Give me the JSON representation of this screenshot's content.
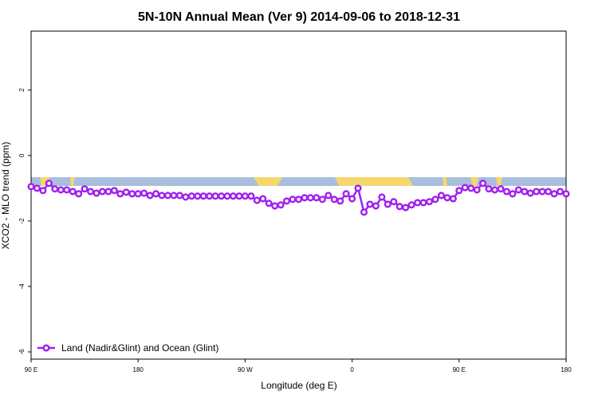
{
  "chart_data": {
    "type": "line",
    "title": "5N-10N Annual Mean (Ver 9)   2014-09-06 to 2018-12-31",
    "x_label": "Longitude (deg E)",
    "y_label": "XCO2 - MLO trend (ppm)",
    "xlim": [
      90,
      540
    ],
    "ylim": [
      -6.22,
      3.8
    ],
    "xticks": [
      {
        "value": 90,
        "label": "90 E"
      },
      180,
      {
        "value": 270,
        "label": "90 W"
      },
      {
        "value": 360,
        "label": "0"
      },
      {
        "value": 450,
        "label": "90 E"
      },
      {
        "value": 540,
        "label": "180"
      }
    ],
    "yticks": [
      -6,
      -4,
      -2,
      0,
      2
    ],
    "legend": "bottom-left",
    "x": [
      90,
      95,
      100,
      105,
      110,
      115,
      120,
      125,
      130,
      135,
      140,
      145,
      150,
      155,
      160,
      165,
      170,
      175,
      180,
      185,
      190,
      195,
      200,
      205,
      210,
      215,
      220,
      225,
      230,
      235,
      240,
      245,
      250,
      255,
      260,
      265,
      270,
      275,
      280,
      285,
      290,
      295,
      300,
      305,
      310,
      315,
      320,
      325,
      330,
      335,
      340,
      345,
      350,
      355,
      360,
      365,
      370,
      375,
      380,
      385,
      390,
      395,
      400,
      405,
      410,
      415,
      420,
      425,
      430,
      435,
      440,
      445,
      450,
      455,
      460,
      465,
      470,
      475,
      480,
      485,
      490,
      495,
      500,
      505,
      510,
      515,
      520,
      525,
      530,
      535,
      540
    ],
    "series": [
      {
        "name": "Land (Nadir&Glint) and Ocean (Glint)",
        "color": "#a020f0",
        "values": [
          -0.95,
          -1.0,
          -1.07,
          -0.85,
          -1.02,
          -1.05,
          -1.05,
          -1.1,
          -1.17,
          -1.02,
          -1.1,
          -1.15,
          -1.1,
          -1.1,
          -1.07,
          -1.17,
          -1.12,
          -1.17,
          -1.17,
          -1.15,
          -1.22,
          -1.17,
          -1.22,
          -1.22,
          -1.22,
          -1.22,
          -1.27,
          -1.24,
          -1.24,
          -1.24,
          -1.24,
          -1.24,
          -1.24,
          -1.24,
          -1.24,
          -1.24,
          -1.24,
          -1.24,
          -1.37,
          -1.32,
          -1.46,
          -1.54,
          -1.51,
          -1.39,
          -1.34,
          -1.34,
          -1.29,
          -1.29,
          -1.29,
          -1.34,
          -1.22,
          -1.34,
          -1.39,
          -1.17,
          -1.32,
          -1.0,
          -1.73,
          -1.49,
          -1.54,
          -1.27,
          -1.49,
          -1.41,
          -1.56,
          -1.59,
          -1.51,
          -1.44,
          -1.44,
          -1.41,
          -1.34,
          -1.22,
          -1.29,
          -1.32,
          -1.07,
          -0.98,
          -1.0,
          -1.05,
          -0.85,
          -1.02,
          -1.05,
          -1.02,
          -1.1,
          -1.17,
          -1.05,
          -1.1,
          -1.15,
          -1.1,
          -1.1,
          -1.1,
          -1.17,
          -1.1,
          -1.17
        ]
      }
    ]
  }
}
